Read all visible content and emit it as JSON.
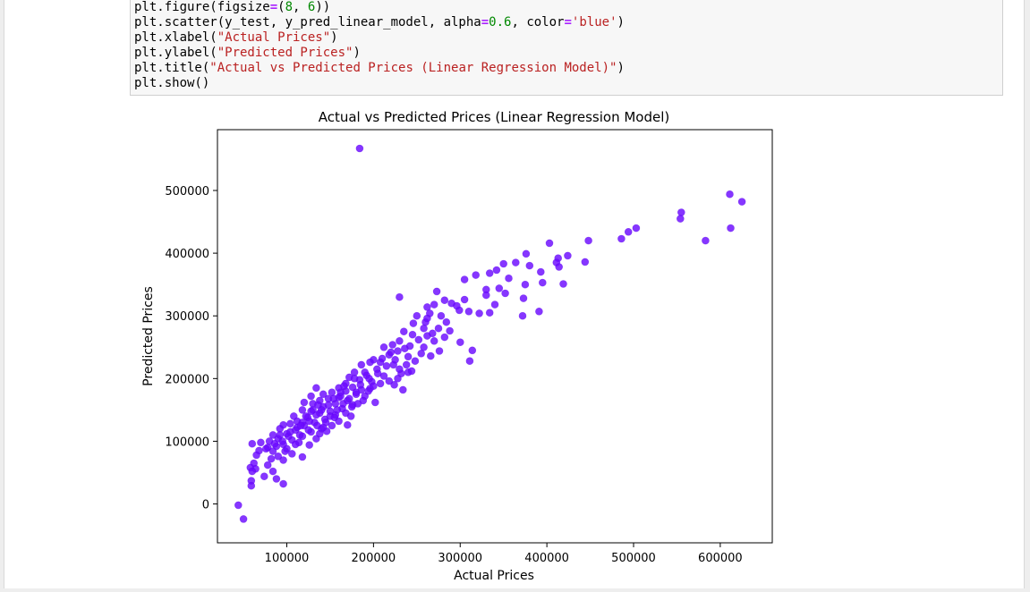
{
  "code_cell": {
    "lines": [
      [
        {
          "t": "plt.figure(figsize"
        },
        {
          "t": "=",
          "c": "op"
        },
        {
          "t": "("
        },
        {
          "t": "8",
          "c": "num"
        },
        {
          "t": ", "
        },
        {
          "t": "6",
          "c": "num"
        },
        {
          "t": "))"
        }
      ],
      [
        {
          "t": "plt.scatter(y_test, y_pred_linear_model, alpha"
        },
        {
          "t": "=",
          "c": "op"
        },
        {
          "t": "0.6",
          "c": "num"
        },
        {
          "t": ", color"
        },
        {
          "t": "=",
          "c": "op"
        },
        {
          "t": "'blue'",
          "c": "str"
        },
        {
          "t": ")"
        }
      ],
      [
        {
          "t": "plt.xlabel("
        },
        {
          "t": "\"Actual Prices\"",
          "c": "str"
        },
        {
          "t": ")"
        }
      ],
      [
        {
          "t": "plt.ylabel("
        },
        {
          "t": "\"Predicted Prices\"",
          "c": "str"
        },
        {
          "t": ")"
        }
      ],
      [
        {
          "t": "plt.title("
        },
        {
          "t": "\"Actual vs Predicted Prices (Linear Regression Model)\"",
          "c": "str"
        },
        {
          "t": ")"
        }
      ],
      [
        {
          "t": "plt.show()"
        }
      ]
    ]
  },
  "colors": {
    "point_fill": "#6b0aff",
    "point_edge": "#5a00f0",
    "code_bg": "#f7f7f7"
  },
  "chart_data": {
    "type": "scatter",
    "title": "Actual vs Predicted Prices (Linear Regression Model)",
    "xlabel": "Actual Prices",
    "ylabel": "Predicted Prices",
    "xlim": [
      20000,
      660000
    ],
    "ylim": [
      -62000,
      597000
    ],
    "xticks": [
      100000,
      200000,
      300000,
      400000,
      500000,
      600000
    ],
    "yticks": [
      0,
      100000,
      200000,
      300000,
      400000,
      500000
    ],
    "grid": false,
    "legend": "none",
    "points": [
      [
        184000,
        567000
      ],
      [
        611000,
        494000
      ],
      [
        625000,
        482000
      ],
      [
        555000,
        465000
      ],
      [
        554000,
        455000
      ],
      [
        503000,
        440000
      ],
      [
        612000,
        440000
      ],
      [
        494000,
        434000
      ],
      [
        448000,
        420000
      ],
      [
        486000,
        423000
      ],
      [
        583000,
        420000
      ],
      [
        403000,
        416000
      ],
      [
        376000,
        399000
      ],
      [
        424000,
        396000
      ],
      [
        413000,
        392000
      ],
      [
        380000,
        380000
      ],
      [
        411000,
        385000
      ],
      [
        444000,
        386000
      ],
      [
        414000,
        378000
      ],
      [
        350000,
        383000
      ],
      [
        364000,
        385000
      ],
      [
        393000,
        370000
      ],
      [
        342000,
        373000
      ],
      [
        334000,
        368000
      ],
      [
        356000,
        360000
      ],
      [
        318000,
        365000
      ],
      [
        305000,
        358000
      ],
      [
        419000,
        351000
      ],
      [
        395000,
        353000
      ],
      [
        375000,
        350000
      ],
      [
        345000,
        344000
      ],
      [
        330000,
        342000
      ],
      [
        273000,
        339000
      ],
      [
        330000,
        333000
      ],
      [
        352000,
        336000
      ],
      [
        230000,
        330000
      ],
      [
        373000,
        328000
      ],
      [
        305000,
        326000
      ],
      [
        282000,
        325000
      ],
      [
        290000,
        320000
      ],
      [
        340000,
        318000
      ],
      [
        270000,
        318000
      ],
      [
        262000,
        314000
      ],
      [
        299000,
        309000
      ],
      [
        310000,
        307000
      ],
      [
        265000,
        304000
      ],
      [
        278000,
        300000
      ],
      [
        372000,
        300000
      ],
      [
        391000,
        307000
      ],
      [
        334000,
        305000
      ],
      [
        250000,
        300000
      ],
      [
        260000,
        290000
      ],
      [
        246000,
        288000
      ],
      [
        258000,
        280000
      ],
      [
        275000,
        280000
      ],
      [
        288000,
        276000
      ],
      [
        235000,
        275000
      ],
      [
        245000,
        270000
      ],
      [
        262000,
        268000
      ],
      [
        282000,
        266000
      ],
      [
        252000,
        262000
      ],
      [
        270000,
        260000
      ],
      [
        230000,
        260000
      ],
      [
        222000,
        254000
      ],
      [
        242000,
        252000
      ],
      [
        300000,
        258000
      ],
      [
        258000,
        250000
      ],
      [
        314000,
        245000
      ],
      [
        276000,
        244000
      ],
      [
        212000,
        250000
      ],
      [
        236000,
        248000
      ],
      [
        228000,
        244000
      ],
      [
        255000,
        240000
      ],
      [
        240000,
        235000
      ],
      [
        218000,
        238000
      ],
      [
        266000,
        236000
      ],
      [
        210000,
        232000
      ],
      [
        200000,
        230000
      ],
      [
        248000,
        228000
      ],
      [
        196000,
        226000
      ],
      [
        311000,
        228000
      ],
      [
        223000,
        222000
      ],
      [
        186000,
        222000
      ],
      [
        204000,
        215000
      ],
      [
        240000,
        210000
      ],
      [
        232000,
        208000
      ],
      [
        178000,
        210000
      ],
      [
        192000,
        205000
      ],
      [
        212000,
        204000
      ],
      [
        228000,
        200000
      ],
      [
        172000,
        202000
      ],
      [
        184000,
        198000
      ],
      [
        198000,
        195000
      ],
      [
        208000,
        192000
      ],
      [
        168000,
        192000
      ],
      [
        224000,
        190000
      ],
      [
        234000,
        182000
      ],
      [
        176000,
        186000
      ],
      [
        186000,
        182000
      ],
      [
        196000,
        184000
      ],
      [
        160000,
        185000
      ],
      [
        134000,
        185000
      ],
      [
        168000,
        180000
      ],
      [
        152000,
        178000
      ],
      [
        180000,
        175000
      ],
      [
        142000,
        175000
      ],
      [
        190000,
        172000
      ],
      [
        160000,
        170000
      ],
      [
        128000,
        172000
      ],
      [
        148000,
        168000
      ],
      [
        170000,
        165000
      ],
      [
        202000,
        162000
      ],
      [
        138000,
        165000
      ],
      [
        156000,
        160000
      ],
      [
        120000,
        162000
      ],
      [
        176000,
        158000
      ],
      [
        142000,
        155000
      ],
      [
        164000,
        152000
      ],
      [
        130000,
        150000
      ],
      [
        150000,
        148000
      ],
      [
        118000,
        150000
      ],
      [
        108000,
        140000
      ],
      [
        138000,
        145000
      ],
      [
        156000,
        142000
      ],
      [
        124000,
        138000
      ],
      [
        144000,
        135000
      ],
      [
        112000,
        132000
      ],
      [
        132000,
        130000
      ],
      [
        170000,
        126000
      ],
      [
        104000,
        128000
      ],
      [
        120000,
        125000
      ],
      [
        96000,
        126000
      ],
      [
        140000,
        120000
      ],
      [
        110000,
        118000
      ],
      [
        92000,
        120000
      ],
      [
        128000,
        115000
      ],
      [
        100000,
        112000
      ],
      [
        118000,
        108000
      ],
      [
        84000,
        110000
      ],
      [
        134000,
        104000
      ],
      [
        106000,
        102000
      ],
      [
        90000,
        104000
      ],
      [
        80000,
        100000
      ],
      [
        114000,
        98000
      ],
      [
        96000,
        95000
      ],
      [
        60000,
        96000
      ],
      [
        70000,
        98000
      ],
      [
        126000,
        94000
      ],
      [
        88000,
        92000
      ],
      [
        78000,
        90000
      ],
      [
        100000,
        88000
      ],
      [
        68000,
        85000
      ],
      [
        84000,
        84000
      ],
      [
        106000,
        80000
      ],
      [
        65000,
        78000
      ],
      [
        90000,
        76000
      ],
      [
        82000,
        72000
      ],
      [
        96000,
        70000
      ],
      [
        118000,
        75000
      ],
      [
        62000,
        65000
      ],
      [
        78000,
        62000
      ],
      [
        58000,
        58000
      ],
      [
        64000,
        56000
      ],
      [
        84000,
        52000
      ],
      [
        60000,
        52000
      ],
      [
        74000,
        44000
      ],
      [
        88000,
        40000
      ],
      [
        59000,
        37000
      ],
      [
        96000,
        32000
      ],
      [
        59000,
        29000
      ],
      [
        44000,
        -2000
      ],
      [
        50000,
        -24000
      ],
      [
        145000,
        130000
      ],
      [
        150000,
        140000
      ],
      [
        158000,
        150000
      ],
      [
        165000,
        160000
      ],
      [
        172000,
        168000
      ],
      [
        180000,
        178000
      ],
      [
        125000,
        118000
      ],
      [
        135000,
        125000
      ],
      [
        115000,
        110000
      ],
      [
        140000,
        150000
      ],
      [
        155000,
        138000
      ],
      [
        162000,
        172000
      ],
      [
        148000,
        158000
      ],
      [
        185000,
        190000
      ],
      [
        195000,
        200000
      ],
      [
        205000,
        208000
      ],
      [
        215000,
        220000
      ],
      [
        225000,
        230000
      ],
      [
        168000,
        145000
      ],
      [
        175000,
        155000
      ],
      [
        110000,
        95000
      ],
      [
        102000,
        108000
      ],
      [
        95000,
        100000
      ],
      [
        122000,
        140000
      ],
      [
        130000,
        160000
      ],
      [
        188000,
        165000
      ],
      [
        200000,
        188000
      ],
      [
        238000,
        222000
      ],
      [
        244000,
        212000
      ],
      [
        218000,
        196000
      ],
      [
        268000,
        272000
      ],
      [
        284000,
        290000
      ],
      [
        262000,
        296000
      ],
      [
        296000,
        316000
      ],
      [
        322000,
        304000
      ],
      [
        160000,
        132000
      ],
      [
        178000,
        200000
      ],
      [
        208000,
        226000
      ],
      [
        112000,
        122000
      ],
      [
        138000,
        112000
      ],
      [
        152000,
        125000
      ],
      [
        146000,
        116000
      ],
      [
        134000,
        142000
      ],
      [
        126000,
        132000
      ],
      [
        118000,
        130000
      ],
      [
        162000,
        178000
      ],
      [
        154000,
        168000
      ],
      [
        166000,
        188000
      ],
      [
        190000,
        210000
      ],
      [
        220000,
        242000
      ],
      [
        230000,
        215000
      ],
      [
        194000,
        180000
      ],
      [
        182000,
        160000
      ],
      [
        174000,
        140000
      ],
      [
        98000,
        84000
      ],
      [
        86000,
        96000
      ],
      [
        92000,
        110000
      ],
      [
        76000,
        88000
      ],
      [
        104000,
        115000
      ],
      [
        116000,
        125000
      ],
      [
        128000,
        148000
      ],
      [
        136000,
        158000
      ],
      [
        142000,
        122000
      ]
    ]
  }
}
